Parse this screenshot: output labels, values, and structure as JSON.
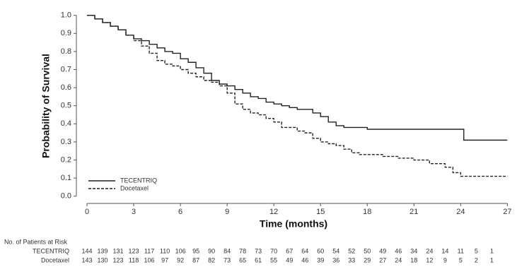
{
  "chart_data": {
    "type": "line",
    "step": "post",
    "x_label": "Time (months)",
    "y_label": "Probability of Survival",
    "xlim": [
      -1,
      27.3
    ],
    "ylim": [
      -0.04,
      1.03
    ],
    "xticks": [
      0,
      3,
      6,
      9,
      12,
      15,
      18,
      21,
      24,
      27
    ],
    "yticks": [
      {
        "value": 0,
        "label": "0.0"
      },
      0.1,
      0.2,
      0.3,
      0.4,
      0.5,
      0.6,
      0.7,
      0.8,
      0.9,
      {
        "value": 1,
        "label": "1.0"
      }
    ],
    "legend": "lower left",
    "series": [
      {
        "name": "TECENTRIQ",
        "color": "#222222",
        "dash": false,
        "x": [
          0,
          0.5,
          1,
          1.5,
          2,
          2.5,
          3,
          3.5,
          4,
          4.5,
          5,
          5.5,
          6,
          6.5,
          7,
          7.5,
          8,
          8.5,
          9,
          9.5,
          10,
          10.5,
          11,
          11.5,
          12,
          12.5,
          13,
          13.5,
          14.5,
          15,
          15.5,
          16,
          16.5,
          18,
          24.2,
          27
        ],
        "values": [
          1.0,
          0.98,
          0.96,
          0.94,
          0.92,
          0.89,
          0.87,
          0.86,
          0.84,
          0.82,
          0.8,
          0.79,
          0.76,
          0.74,
          0.71,
          0.68,
          0.64,
          0.62,
          0.61,
          0.59,
          0.57,
          0.55,
          0.54,
          0.52,
          0.51,
          0.5,
          0.49,
          0.48,
          0.46,
          0.44,
          0.41,
          0.39,
          0.38,
          0.37,
          0.31,
          0.31
        ],
        "at_risk": [
          144,
          139,
          131,
          123,
          117,
          110,
          106,
          95,
          90,
          84,
          78,
          73,
          70,
          67,
          64,
          60,
          54,
          52,
          50,
          49,
          46,
          34,
          24,
          14,
          11,
          5,
          1
        ]
      },
      {
        "name": "Docetaxel",
        "color": "#222222",
        "dash": true,
        "x": [
          0,
          0.5,
          1,
          1.5,
          2,
          2.5,
          3,
          3.5,
          4,
          4.5,
          5,
          5.5,
          6,
          6.5,
          7,
          7.5,
          8,
          8.5,
          9,
          9.5,
          10,
          10.5,
          11,
          11.5,
          12,
          12.5,
          13.5,
          14,
          14.5,
          15,
          15.5,
          16,
          16.5,
          17,
          17.5,
          19,
          20,
          21,
          22,
          23,
          23.5,
          24,
          27
        ],
        "values": [
          1.0,
          0.98,
          0.96,
          0.94,
          0.92,
          0.89,
          0.86,
          0.83,
          0.79,
          0.75,
          0.73,
          0.72,
          0.7,
          0.68,
          0.66,
          0.64,
          0.63,
          0.61,
          0.57,
          0.51,
          0.48,
          0.46,
          0.45,
          0.43,
          0.41,
          0.38,
          0.36,
          0.35,
          0.32,
          0.3,
          0.29,
          0.28,
          0.26,
          0.24,
          0.23,
          0.22,
          0.21,
          0.2,
          0.18,
          0.16,
          0.13,
          0.11,
          0.11
        ],
        "at_risk": [
          143,
          130,
          123,
          118,
          106,
          97,
          92,
          87,
          82,
          73,
          65,
          61,
          55,
          49,
          46,
          39,
          36,
          33,
          29,
          27,
          24,
          18,
          12,
          9,
          5,
          2,
          1
        ]
      }
    ],
    "risk_table_title": "No. of Patients at Risk"
  }
}
